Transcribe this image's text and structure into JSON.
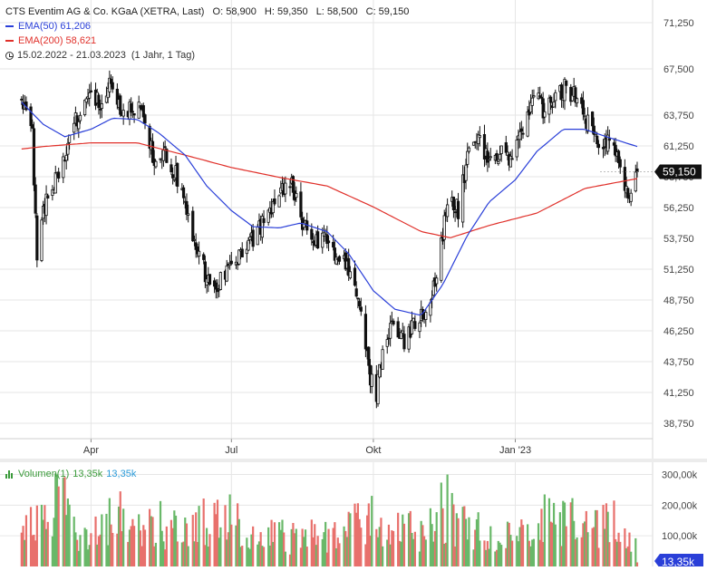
{
  "header": {
    "instrument": "CTS Eventim AG & Co. KGaA (XETRA, Last)",
    "open": "O: 58,900",
    "high": "H: 59,350",
    "low": "L: 58,500",
    "close": "C: 59,150",
    "ema50_label": "EMA(50)",
    "ema50_value": "61,206",
    "ema200_label": "EMA(200)",
    "ema200_value": "58,621",
    "range": "15.02.2022 - 21.03.2023",
    "period": "(1 Jahr, 1 Tag)"
  },
  "volume_header": {
    "label": "Volumen(1)",
    "value1": "13,35k",
    "value2": "13,35k"
  },
  "colors": {
    "up": "#69b869",
    "down": "#e8706c",
    "ema50": "#2a3fd8",
    "ema200": "#e0302a",
    "candle": "#111111",
    "grid": "#e6e6e6",
    "price_tag": "#111111",
    "volume_tag": "#2a3fd8"
  },
  "chart_data": [
    {
      "type": "candlestick",
      "title": "CTS Eventim AG & Co. KGaA (XETRA, Last)",
      "y_ticks": [
        "71,250",
        "67,500",
        "63,750",
        "61,250",
        "58,750",
        "56,250",
        "53,750",
        "51,250",
        "48,750",
        "46,250",
        "43,750",
        "41,250",
        "38,750"
      ],
      "y_tick_values": [
        71.25,
        67.5,
        63.75,
        61.25,
        58.75,
        56.25,
        53.75,
        51.25,
        48.75,
        46.25,
        43.75,
        41.25,
        38.75
      ],
      "ylim": [
        37.5,
        72.5
      ],
      "x_ticks": [
        "Apr",
        "Jul",
        "Okt",
        "Jan '23"
      ],
      "x_tick_dates": [
        "2022-04-01",
        "2022-07-01",
        "2022-10-01",
        "2023-01-01"
      ],
      "x_range": [
        "2022-02-15",
        "2023-03-21"
      ],
      "last_price_label": "59,150",
      "last_price": 59.15,
      "price_path": [
        [
          "2022-02-15",
          64.8
        ],
        [
          "2022-02-22",
          62.0
        ],
        [
          "2022-02-25",
          51.8
        ],
        [
          "2022-03-03",
          57.5
        ],
        [
          "2022-03-10",
          58.5
        ],
        [
          "2022-03-17",
          61.0
        ],
        [
          "2022-03-24",
          64.0
        ],
        [
          "2022-03-31",
          65.5
        ],
        [
          "2022-04-07",
          65.0
        ],
        [
          "2022-04-14",
          66.5
        ],
        [
          "2022-04-21",
          63.5
        ],
        [
          "2022-04-28",
          64.5
        ],
        [
          "2022-05-05",
          63.8
        ],
        [
          "2022-05-12",
          60.0
        ],
        [
          "2022-05-19",
          60.5
        ],
        [
          "2022-05-26",
          59.0
        ],
        [
          "2022-06-02",
          56.0
        ],
        [
          "2022-06-09",
          53.0
        ],
        [
          "2022-06-16",
          50.0
        ],
        [
          "2022-06-21",
          49.5
        ],
        [
          "2022-06-27",
          51.0
        ],
        [
          "2022-07-05",
          52.0
        ],
        [
          "2022-07-12",
          53.0
        ],
        [
          "2022-07-19",
          54.5
        ],
        [
          "2022-07-26",
          55.5
        ],
        [
          "2022-08-02",
          57.5
        ],
        [
          "2022-08-09",
          58.5
        ],
        [
          "2022-08-16",
          55.0
        ],
        [
          "2022-08-23",
          53.0
        ],
        [
          "2022-08-30",
          54.0
        ],
        [
          "2022-09-06",
          52.0
        ],
        [
          "2022-09-13",
          51.5
        ],
        [
          "2022-09-20",
          49.0
        ],
        [
          "2022-09-24",
          47.5
        ],
        [
          "2022-09-28",
          43.0
        ],
        [
          "2022-10-03",
          41.0
        ],
        [
          "2022-10-07",
          45.0
        ],
        [
          "2022-10-14",
          46.5
        ],
        [
          "2022-10-21",
          45.5
        ],
        [
          "2022-10-28",
          47.0
        ],
        [
          "2022-11-04",
          48.0
        ],
        [
          "2022-11-11",
          50.5
        ],
        [
          "2022-11-18",
          57.0
        ],
        [
          "2022-11-25",
          56.0
        ],
        [
          "2022-12-02",
          61.0
        ],
        [
          "2022-12-09",
          61.5
        ],
        [
          "2022-12-16",
          60.0
        ],
        [
          "2022-12-23",
          61.0
        ],
        [
          "2022-12-30",
          60.0
        ],
        [
          "2023-01-06",
          62.5
        ],
        [
          "2023-01-13",
          65.5
        ],
        [
          "2023-01-20",
          64.0
        ],
        [
          "2023-01-27",
          65.0
        ],
        [
          "2023-02-03",
          66.0
        ],
        [
          "2023-02-10",
          65.0
        ],
        [
          "2023-02-17",
          63.0
        ],
        [
          "2023-02-24",
          61.0
        ],
        [
          "2023-03-03",
          61.5
        ],
        [
          "2023-03-10",
          59.5
        ],
        [
          "2023-03-15",
          57.5
        ],
        [
          "2023-03-21",
          59.15
        ]
      ],
      "ema50": [
        [
          "2022-02-15",
          64.8
        ],
        [
          "2022-03-01",
          63.0
        ],
        [
          "2022-03-15",
          62.0
        ],
        [
          "2022-04-01",
          62.6
        ],
        [
          "2022-04-15",
          63.5
        ],
        [
          "2022-05-01",
          63.4
        ],
        [
          "2022-05-15",
          62.3
        ],
        [
          "2022-06-01",
          60.5
        ],
        [
          "2022-06-15",
          58.0
        ],
        [
          "2022-07-01",
          56.0
        ],
        [
          "2022-07-15",
          54.7
        ],
        [
          "2022-08-01",
          54.6
        ],
        [
          "2022-08-15",
          55.0
        ],
        [
          "2022-09-01",
          54.3
        ],
        [
          "2022-09-15",
          52.5
        ],
        [
          "2022-10-01",
          49.5
        ],
        [
          "2022-10-15",
          48.0
        ],
        [
          "2022-11-01",
          47.5
        ],
        [
          "2022-11-15",
          50.0
        ],
        [
          "2022-12-01",
          54.0
        ],
        [
          "2022-12-15",
          56.7
        ],
        [
          "2023-01-01",
          58.5
        ],
        [
          "2023-01-15",
          60.8
        ],
        [
          "2023-02-01",
          62.6
        ],
        [
          "2023-02-15",
          62.6
        ],
        [
          "2023-03-01",
          62.0
        ],
        [
          "2023-03-21",
          61.2
        ]
      ],
      "ema200": [
        [
          "2022-02-15",
          61.0
        ],
        [
          "2022-03-01",
          61.2
        ],
        [
          "2022-04-01",
          61.5
        ],
        [
          "2022-05-01",
          61.5
        ],
        [
          "2022-06-01",
          60.5
        ],
        [
          "2022-07-01",
          59.5
        ],
        [
          "2022-08-01",
          58.7
        ],
        [
          "2022-09-01",
          58.0
        ],
        [
          "2022-10-01",
          56.3
        ],
        [
          "2022-11-01",
          54.3
        ],
        [
          "2022-11-20",
          53.8
        ],
        [
          "2022-12-15",
          54.8
        ],
        [
          "2023-01-15",
          55.8
        ],
        [
          "2023-02-15",
          57.8
        ],
        [
          "2023-03-21",
          58.6
        ]
      ]
    },
    {
      "type": "bar",
      "title": "Volumen(1)",
      "y_ticks": [
        "300,00k",
        "200,00k",
        "100,00k"
      ],
      "y_tick_values": [
        300000,
        200000,
        100000
      ],
      "ylim": [
        0,
        340000
      ],
      "last_value_label": "13,35k",
      "last_value": 13350,
      "volume_profile": [
        [
          "2022-02-15",
          130000
        ],
        [
          "2022-03-01",
          170000
        ],
        [
          "2022-03-10",
          290000
        ],
        [
          "2022-03-20",
          140000
        ],
        [
          "2022-04-01",
          110000
        ],
        [
          "2022-04-15",
          180000
        ],
        [
          "2022-05-01",
          140000
        ],
        [
          "2022-05-15",
          160000
        ],
        [
          "2022-06-01",
          150000
        ],
        [
          "2022-06-20",
          190000
        ],
        [
          "2022-07-01",
          170000
        ],
        [
          "2022-07-20",
          120000
        ],
        [
          "2022-08-10",
          110000
        ],
        [
          "2022-09-01",
          120000
        ],
        [
          "2022-09-25",
          170000
        ],
        [
          "2022-10-15",
          150000
        ],
        [
          "2022-11-01",
          130000
        ],
        [
          "2022-11-15",
          210000
        ],
        [
          "2022-12-01",
          140000
        ],
        [
          "2022-12-20",
          120000
        ],
        [
          "2023-01-10",
          110000
        ],
        [
          "2023-01-25",
          170000
        ],
        [
          "2023-02-10",
          160000
        ],
        [
          "2023-03-01",
          150000
        ],
        [
          "2023-03-21",
          110000
        ]
      ],
      "spikes": [
        [
          "2022-03-10",
          300000
        ],
        [
          "2022-03-14",
          290000
        ],
        [
          "2022-04-20",
          245000
        ],
        [
          "2022-06-30",
          235000
        ],
        [
          "2022-11-18",
          300000
        ],
        [
          "2023-01-20",
          235000
        ],
        [
          "2023-03-06",
          215000
        ]
      ]
    }
  ]
}
